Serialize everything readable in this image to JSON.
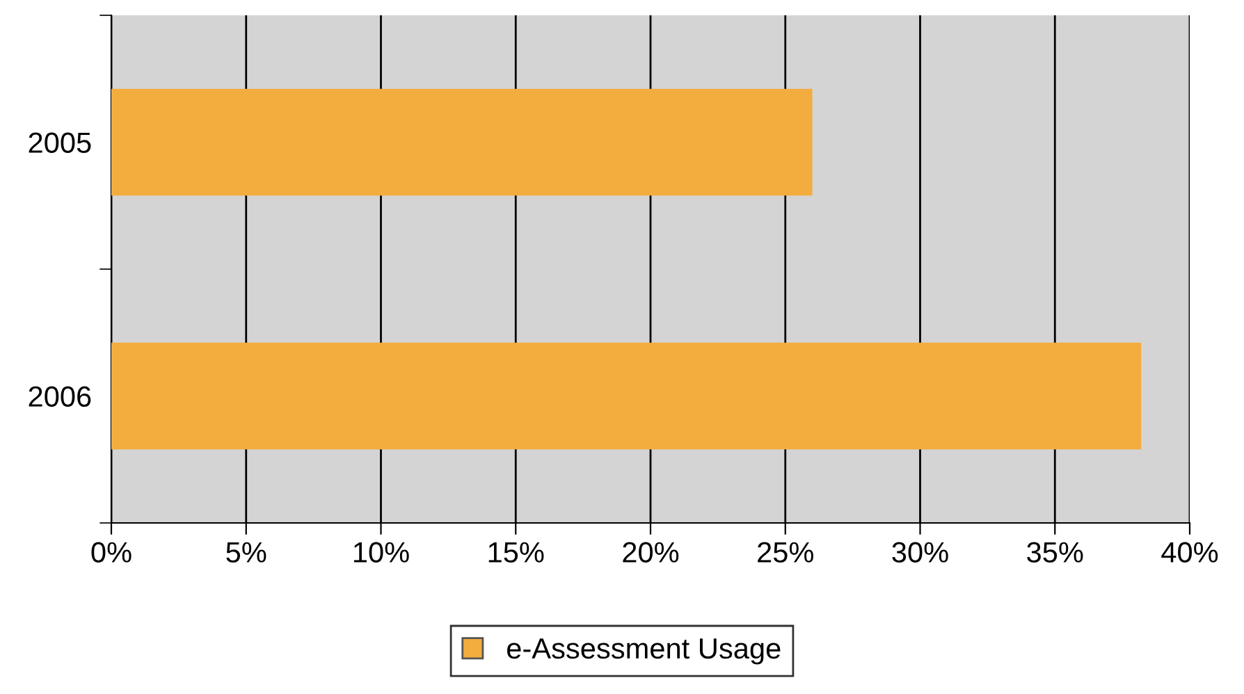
{
  "chart_data": {
    "type": "bar",
    "orientation": "horizontal",
    "categories": [
      "2005",
      "2006"
    ],
    "series": [
      {
        "name": "e-Assessment Usage",
        "color": "#f3ac3e",
        "values": [
          26,
          38.2
        ]
      }
    ],
    "xlim": [
      0,
      40
    ],
    "xticks": [
      {
        "value": 0,
        "label": "0%"
      },
      {
        "value": 5,
        "label": "5%"
      },
      {
        "value": 10,
        "label": "10%"
      },
      {
        "value": 15,
        "label": "15%"
      },
      {
        "value": 20,
        "label": "20%"
      },
      {
        "value": 25,
        "label": "25%"
      },
      {
        "value": 30,
        "label": "30%"
      },
      {
        "value": 35,
        "label": "35%"
      },
      {
        "value": 40,
        "label": "40%"
      }
    ],
    "grid": "x",
    "legend": "bottom"
  }
}
